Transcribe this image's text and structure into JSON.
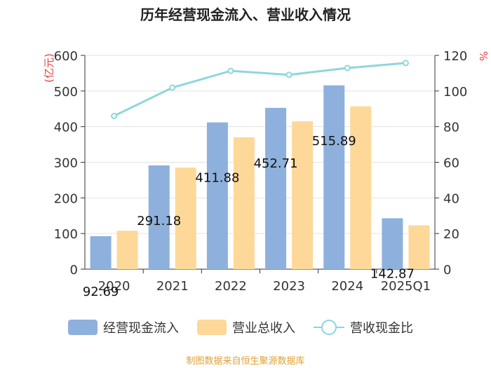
{
  "chart_data": {
    "type": "bar",
    "title": "历年经营现金流入、营业收入情况",
    "categories": [
      "2020",
      "2021",
      "2022",
      "2023",
      "2024",
      "2025Q1"
    ],
    "series": [
      {
        "name": "经营现金流入",
        "kind": "bar",
        "axis": "left",
        "color": "#8eb0dd",
        "values": [
          92.69,
          291.18,
          411.88,
          452.71,
          515.89,
          142.87
        ],
        "data_labels": [
          "92.69",
          "291.18",
          "411.88",
          "452.71",
          "515.89",
          "142.87"
        ]
      },
      {
        "name": "营业总收入",
        "kind": "bar",
        "axis": "left",
        "color": "#fdd898",
        "values": [
          108,
          285,
          370,
          415,
          457,
          123
        ]
      },
      {
        "name": "营收现金比",
        "kind": "line",
        "axis": "right",
        "color": "#8ed6dc",
        "values": [
          86,
          101.9,
          111.3,
          109.1,
          112.9,
          115.7
        ]
      }
    ],
    "ylabel_left": "(亿元)",
    "ylabel_right": "%",
    "ylim_left": [
      0,
      600
    ],
    "yticks_left": [
      "0",
      "100",
      "200",
      "300",
      "400",
      "500",
      "600"
    ],
    "ylim_right": [
      0,
      120
    ],
    "yticks_right": [
      "0",
      "20",
      "40",
      "60",
      "80",
      "100",
      "120"
    ],
    "legend_position": "bottom",
    "grid": true,
    "source": "制图数据来自恒生聚源数据库"
  }
}
